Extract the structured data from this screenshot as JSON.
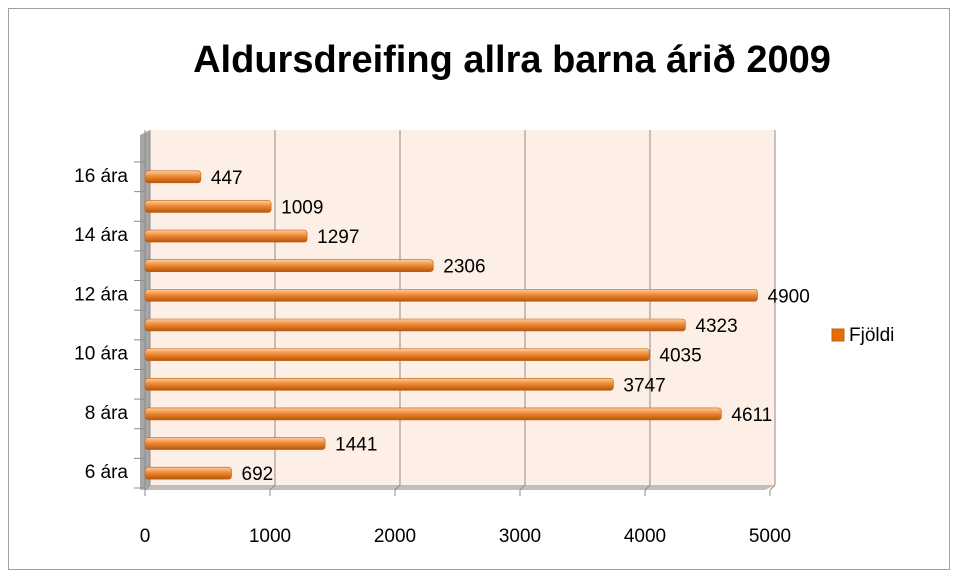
{
  "chart_data": {
    "type": "bar",
    "orientation": "horizontal",
    "title": "Aldursdreifing allra barna árið 2009",
    "categories": [
      "6 ára",
      null,
      "8 ára",
      null,
      "10 ára",
      null,
      "12 ára",
      null,
      "14 ára",
      null,
      "16 ára"
    ],
    "series": [
      {
        "name": "Fjöldi",
        "color": "#e46c0a",
        "values": [
          692,
          1441,
          4611,
          3747,
          4035,
          4323,
          4900,
          2306,
          1297,
          1009,
          447
        ]
      }
    ],
    "xlim": [
      0,
      5000
    ],
    "xticks": [
      0,
      1000,
      2000,
      3000,
      4000,
      5000
    ],
    "grid": true,
    "legend": "right"
  }
}
